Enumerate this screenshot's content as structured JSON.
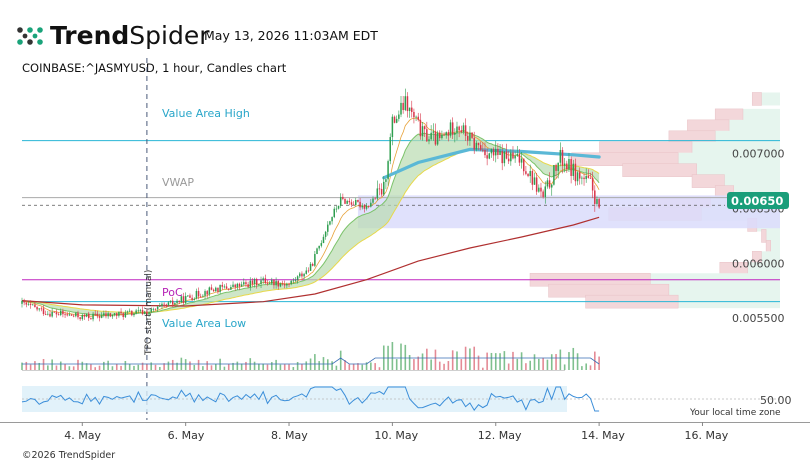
{
  "header": {
    "brand_bold": "Trend",
    "brand_light": "Spider",
    "datetime": "May 13, 2026 11:03AM EDT",
    "symbol_line": "COINBASE:^JASMYUSD, 1 hour, Candles chart",
    "logo_icon": "trendspider-dots-icon"
  },
  "footer": {
    "copyright": "©2026 TrendSpider",
    "local_time": "Your local time zone"
  },
  "levels": {
    "value_area_high": {
      "label": "Value Area High",
      "price": 0.00712,
      "color": "#29b6d6"
    },
    "vwap": {
      "label": "VWAP",
      "price": 0.0066,
      "color": "#aaaaaa"
    },
    "poc": {
      "label": "PoC",
      "price": 0.00585,
      "color": "#c026c0"
    },
    "value_area_low": {
      "label": "Value Area Low",
      "price": 0.00565,
      "color": "#29b6d6"
    }
  },
  "anchor": {
    "label": "TPO start (manual)",
    "date": "2026-05-05T06:00"
  },
  "price_badge": {
    "value": "0.00650",
    "color": "#1a9e7a"
  },
  "oscillator": {
    "label": "50.00"
  },
  "colors": {
    "up": "#2e9e4f",
    "down": "#d9354a",
    "value_area_fill": "#dadcfb",
    "profile_up": "#e6f5ee",
    "profile_down": "#f3d7da",
    "ema_long": "#b03030",
    "vwap_band": "#5ab8d6",
    "band_fill": "#b9dcb0",
    "osc_line": "#3b8ed9",
    "osc_fill": "#dbeff9"
  },
  "chart_data": {
    "type": "candlestick",
    "title": "COINBASE:^JASMYUSD, 1 hour, Candles chart",
    "x_range": [
      "2026-05-02T20:00",
      "2026-05-17T12:00"
    ],
    "y_range": [
      0.0053,
      0.0076
    ],
    "x_ticks": [
      {
        "label": "4. May",
        "date": "2026-05-04"
      },
      {
        "label": "6. May",
        "date": "2026-05-06"
      },
      {
        "label": "8. May",
        "date": "2026-05-08"
      },
      {
        "label": "10. May",
        "date": "2026-05-10"
      },
      {
        "label": "12. May",
        "date": "2026-05-12"
      },
      {
        "label": "14. May",
        "date": "2026-05-14"
      },
      {
        "label": "16. May",
        "date": "2026-05-16"
      }
    ],
    "y_ticks": [
      {
        "label": "0.005500",
        "value": 0.0055
      },
      {
        "label": "0.006000",
        "value": 0.006
      },
      {
        "label": "0.006500",
        "value": 0.0065
      },
      {
        "label": "0.007000",
        "value": 0.007
      }
    ],
    "price_path": [
      {
        "date": "2026-05-02T20:00",
        "price": 0.00563
      },
      {
        "date": "2026-05-03T08:00",
        "price": 0.00555
      },
      {
        "date": "2026-05-04T00:00",
        "price": 0.00551
      },
      {
        "date": "2026-05-04T16:00",
        "price": 0.00553
      },
      {
        "date": "2026-05-05T08:00",
        "price": 0.00556
      },
      {
        "date": "2026-05-06T00:00",
        "price": 0.00568
      },
      {
        "date": "2026-05-06T12:00",
        "price": 0.00576
      },
      {
        "date": "2026-05-07T00:00",
        "price": 0.00579
      },
      {
        "date": "2026-05-07T12:00",
        "price": 0.00584
      },
      {
        "date": "2026-05-08T00:00",
        "price": 0.00581
      },
      {
        "date": "2026-05-08T10:00",
        "price": 0.00596
      },
      {
        "date": "2026-05-08T18:00",
        "price": 0.00636
      },
      {
        "date": "2026-05-09T00:00",
        "price": 0.00658
      },
      {
        "date": "2026-05-09T12:00",
        "price": 0.00652
      },
      {
        "date": "2026-05-09T20:00",
        "price": 0.00668
      },
      {
        "date": "2026-05-10T00:00",
        "price": 0.00728
      },
      {
        "date": "2026-05-10T06:00",
        "price": 0.00746
      },
      {
        "date": "2026-05-10T14:00",
        "price": 0.00718
      },
      {
        "date": "2026-05-10T22:00",
        "price": 0.00712
      },
      {
        "date": "2026-05-11T06:00",
        "price": 0.00728
      },
      {
        "date": "2026-05-11T14:00",
        "price": 0.00708
      },
      {
        "date": "2026-05-12T00:00",
        "price": 0.00698
      },
      {
        "date": "2026-05-12T12:00",
        "price": 0.00694
      },
      {
        "date": "2026-05-12T22:00",
        "price": 0.0066
      },
      {
        "date": "2026-05-13T06:00",
        "price": 0.00696
      },
      {
        "date": "2026-05-13T14:00",
        "price": 0.0068
      },
      {
        "date": "2026-05-13T20:00",
        "price": 0.00672
      },
      {
        "date": "2026-05-14T00:00",
        "price": 0.0065
      }
    ],
    "long_ema": [
      {
        "date": "2026-05-02T20:00",
        "price": 0.00566
      },
      {
        "date": "2026-05-04T00:00",
        "price": 0.00562
      },
      {
        "date": "2026-05-06T00:00",
        "price": 0.00561
      },
      {
        "date": "2026-05-07T12:00",
        "price": 0.00565
      },
      {
        "date": "2026-05-08T12:00",
        "price": 0.00572
      },
      {
        "date": "2026-05-09T12:00",
        "price": 0.00585
      },
      {
        "date": "2026-05-10T12:00",
        "price": 0.00602
      },
      {
        "date": "2026-05-11T12:00",
        "price": 0.00614
      },
      {
        "date": "2026-05-12T12:00",
        "price": 0.00624
      },
      {
        "date": "2026-05-13T12:00",
        "price": 0.00635
      },
      {
        "date": "2026-05-14T00:00",
        "price": 0.00642
      }
    ],
    "vwap_line": [
      {
        "date": "2026-05-09T20:00",
        "price": 0.00678
      },
      {
        "date": "2026-05-10T12:00",
        "price": 0.00692
      },
      {
        "date": "2026-05-11T12:00",
        "price": 0.00704
      },
      {
        "date": "2026-05-12T12:00",
        "price": 0.00702
      },
      {
        "date": "2026-05-13T12:00",
        "price": 0.00699
      },
      {
        "date": "2026-05-14T00:00",
        "price": 0.00697
      }
    ],
    "volume_profile": [
      {
        "price": 0.0075,
        "up": 0.2,
        "down": 0.1
      },
      {
        "price": 0.00735,
        "up": 0.4,
        "down": 0.3
      },
      {
        "price": 0.00725,
        "up": 0.55,
        "down": 0.45
      },
      {
        "price": 0.00715,
        "up": 0.7,
        "down": 0.5
      },
      {
        "price": 0.00705,
        "up": 0.95,
        "down": 1.0
      },
      {
        "price": 0.00695,
        "up": 1.1,
        "down": 1.15
      },
      {
        "price": 0.00685,
        "up": 0.9,
        "down": 0.8
      },
      {
        "price": 0.00675,
        "up": 0.6,
        "down": 0.35
      },
      {
        "price": 0.00665,
        "up": 0.5,
        "down": 0.2
      },
      {
        "price": 0.00655,
        "up": 0.75,
        "down": 0.65
      },
      {
        "price": 0.00645,
        "up": 0.85,
        "down": 1.0
      },
      {
        "price": 0.00635,
        "up": 0.25,
        "down": 0.1
      },
      {
        "price": 0.00625,
        "up": 0.15,
        "down": 0.05
      },
      {
        "price": 0.00615,
        "up": 0.1,
        "down": 0.05
      },
      {
        "price": 0.00605,
        "up": 0.2,
        "down": 0.1
      },
      {
        "price": 0.00595,
        "up": 0.35,
        "down": 0.3
      },
      {
        "price": 0.00585,
        "up": 1.4,
        "down": 1.3
      },
      {
        "price": 0.00575,
        "up": 1.2,
        "down": 1.3
      },
      {
        "price": 0.00565,
        "up": 1.1,
        "down": 1.0
      }
    ]
  }
}
